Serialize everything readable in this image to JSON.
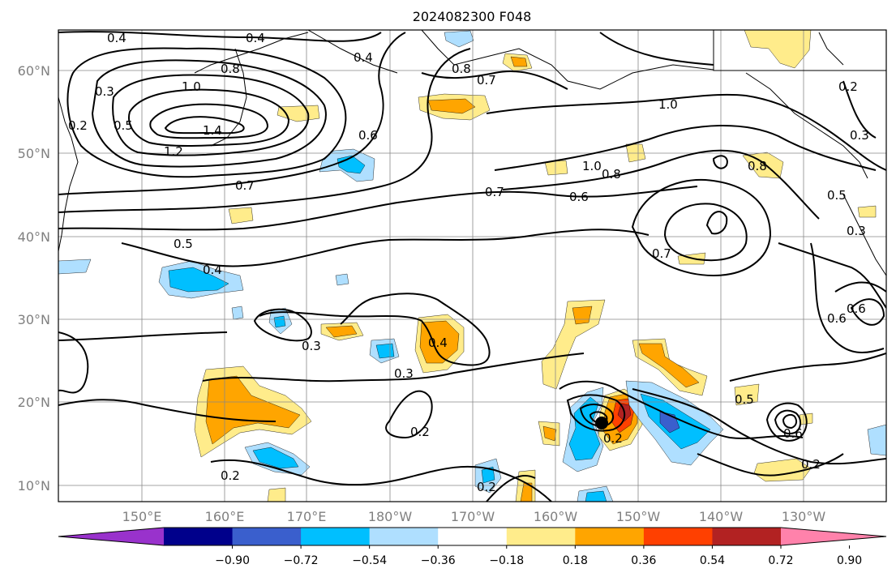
{
  "title": "2024082300 F048",
  "lat_labels": [
    "60°N",
    "50°N",
    "40°N",
    "30°N",
    "20°N",
    "10°N"
  ],
  "lon_labels": [
    "150°E",
    "160°E",
    "170°E",
    "180°W",
    "170°W",
    "160°W",
    "150°W",
    "140°W",
    "130°W"
  ],
  "colorbar": {
    "ticks": [
      "−0.90",
      "−0.72",
      "−0.54",
      "−0.36",
      "−0.18",
      "0.18",
      "0.36",
      "0.54",
      "0.72",
      "0.90"
    ],
    "colors": [
      "#9932cc",
      "#00008b",
      "#3a5fcd",
      "#00bfff",
      "#afdfff",
      "#ffffff",
      "#ffec8b",
      "#ffa500",
      "#ff4000",
      "#b22222",
      "#ff82ab"
    ]
  },
  "contour_labels": [
    "0.4",
    "0.4",
    "0.4",
    "0.8",
    "0.7",
    "1.0",
    "0.8",
    "1.4",
    "1.2",
    "0.3",
    "0.2",
    "0.5",
    "0.6",
    "1.0",
    "0.7",
    "0.6",
    "0.8",
    "1.0",
    "0.8",
    "0.3",
    "0.2",
    "0.7",
    "0.5",
    "0.4",
    "0.3",
    "0.3",
    "0.4",
    "0.2",
    "0.2",
    "0.2",
    "0.5",
    "0.5",
    "0.7",
    "0.6",
    "0.2",
    "0.3",
    "0.6",
    "0.2",
    "0.6"
  ]
}
